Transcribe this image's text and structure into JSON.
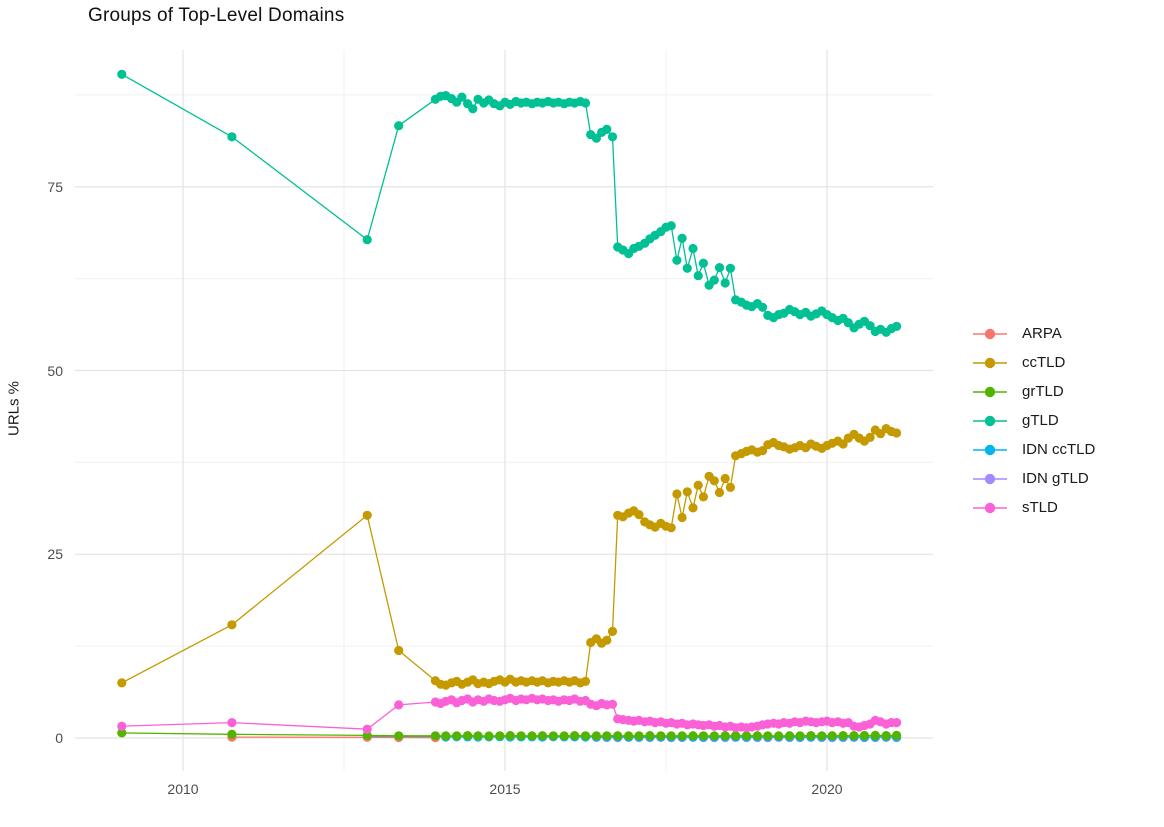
{
  "title": "Groups of Top-Level Domains",
  "y_axis": {
    "label": "URLs %",
    "tick_labels": [
      "0",
      "25",
      "50",
      "75"
    ],
    "major_ticks": [
      0,
      25,
      50,
      75
    ],
    "minor_ticks": [
      12.5,
      37.5,
      62.5,
      87.5
    ],
    "range": [
      -4.5,
      93.6
    ]
  },
  "x_axis": {
    "label": "",
    "tick_labels": [
      "2010",
      "2015",
      "2020"
    ],
    "major_ticks": [
      2010,
      2015,
      2020
    ],
    "minor_ticks": [
      2012.5,
      2017.5
    ],
    "range": [
      2008.3,
      2021.65
    ]
  },
  "legend": {
    "position": "right",
    "items": [
      {
        "label": "ARPA",
        "color": "#F8766D"
      },
      {
        "label": "ccTLD",
        "color": "#C49A00"
      },
      {
        "label": "grTLD",
        "color": "#53B400"
      },
      {
        "label": "gTLD",
        "color": "#00C094"
      },
      {
        "label": "IDN ccTLD",
        "color": "#00B6EB"
      },
      {
        "label": "IDN gTLD",
        "color": "#A58AFF"
      },
      {
        "label": "sTLD",
        "color": "#FB61D7"
      }
    ]
  },
  "style": {
    "background": "#FFFFFF",
    "grid_major_color": "#E4E4E4",
    "grid_minor_color": "#F0F0F0",
    "tick_label_color": "#4D4D4D",
    "title_color": "#111111"
  },
  "chart_data": {
    "type": "line",
    "title": "Groups of Top-Level Domains",
    "xlabel": "",
    "ylabel": "URLs %",
    "xlim": [
      2008.3,
      2021.65
    ],
    "ylim": [
      -4.5,
      93.6
    ],
    "grid": true,
    "legend_position": "right",
    "marker": "point",
    "x_monthly": [
      2013.92,
      2014.0,
      2014.08,
      2014.17,
      2014.25,
      2014.33,
      2014.42,
      2014.5,
      2014.58,
      2014.67,
      2014.75,
      2014.83,
      2014.92,
      2015.0,
      2015.08,
      2015.17,
      2015.25,
      2015.33,
      2015.42,
      2015.5,
      2015.58,
      2015.67,
      2015.75,
      2015.83,
      2015.92,
      2016.0,
      2016.08,
      2016.17,
      2016.25,
      2016.33,
      2016.42,
      2016.5,
      2016.58,
      2016.67,
      2016.75,
      2016.83,
      2016.92,
      2017.0,
      2017.08,
      2017.17,
      2017.25,
      2017.33,
      2017.42,
      2017.5,
      2017.58,
      2017.67,
      2017.75,
      2017.83,
      2017.92,
      2018.0,
      2018.08,
      2018.17,
      2018.25,
      2018.33,
      2018.42,
      2018.5,
      2018.58,
      2018.67,
      2018.75,
      2018.83,
      2018.92,
      2019.0,
      2019.08,
      2019.17,
      2019.25,
      2019.33,
      2019.42,
      2019.5,
      2019.58,
      2019.67,
      2019.75,
      2019.83,
      2019.92,
      2020.0,
      2020.08,
      2020.17,
      2020.25,
      2020.33,
      2020.42,
      2020.5,
      2020.58,
      2020.67,
      2020.75,
      2020.83,
      2020.92,
      2021.0,
      2021.08
    ],
    "series": [
      {
        "name": "IDN gTLD",
        "color": "#A58AFF",
        "points": [
          [
            2016.42,
            0.08
          ],
          [
            2016.58,
            0.07
          ],
          [
            2016.75,
            0.06
          ],
          [
            2016.92,
            0.08
          ],
          [
            2017.08,
            0.07
          ],
          [
            2017.25,
            0.07
          ],
          [
            2017.42,
            0.08
          ],
          [
            2017.58,
            0.06
          ],
          [
            2017.75,
            0.07
          ],
          [
            2017.92,
            0.08
          ],
          [
            2018.08,
            0.07
          ],
          [
            2018.25,
            0.06
          ],
          [
            2018.42,
            0.07
          ],
          [
            2018.58,
            0.08
          ],
          [
            2018.75,
            0.07
          ],
          [
            2018.92,
            0.07
          ],
          [
            2019.08,
            0.06
          ],
          [
            2019.25,
            0.08
          ],
          [
            2019.42,
            0.07
          ],
          [
            2019.58,
            0.07
          ],
          [
            2019.75,
            0.08
          ],
          [
            2019.92,
            0.07
          ],
          [
            2020.08,
            0.06
          ],
          [
            2020.25,
            0.07
          ],
          [
            2020.42,
            0.08
          ],
          [
            2020.58,
            0.07
          ],
          [
            2020.75,
            0.07
          ],
          [
            2020.92,
            0.08
          ],
          [
            2021.08,
            0.07
          ]
        ]
      },
      {
        "name": "IDN ccTLD",
        "color": "#00B6EB",
        "points": [
          [
            2012.86,
            0.2
          ],
          [
            2013.35,
            0.15
          ],
          [
            2013.92,
            0.15
          ],
          [
            2014.08,
            0.14
          ],
          [
            2014.25,
            0.16
          ],
          [
            2014.42,
            0.15
          ],
          [
            2014.58,
            0.13
          ],
          [
            2014.75,
            0.15
          ],
          [
            2014.92,
            0.16
          ],
          [
            2015.08,
            0.14
          ],
          [
            2015.25,
            0.15
          ],
          [
            2015.42,
            0.15
          ],
          [
            2015.58,
            0.14
          ],
          [
            2015.75,
            0.16
          ],
          [
            2015.92,
            0.15
          ],
          [
            2016.08,
            0.15
          ],
          [
            2016.25,
            0.14
          ],
          [
            2016.42,
            0.15
          ],
          [
            2016.58,
            0.16
          ],
          [
            2016.75,
            0.15
          ],
          [
            2016.92,
            0.14
          ],
          [
            2017.08,
            0.15
          ],
          [
            2017.25,
            0.15
          ],
          [
            2017.42,
            0.16
          ],
          [
            2017.58,
            0.14
          ],
          [
            2017.75,
            0.15
          ],
          [
            2017.92,
            0.15
          ],
          [
            2018.08,
            0.14
          ],
          [
            2018.25,
            0.15
          ],
          [
            2018.42,
            0.16
          ],
          [
            2018.58,
            0.15
          ],
          [
            2018.75,
            0.14
          ],
          [
            2018.92,
            0.15
          ],
          [
            2019.08,
            0.15
          ],
          [
            2019.25,
            0.16
          ],
          [
            2019.42,
            0.15
          ],
          [
            2019.58,
            0.14
          ],
          [
            2019.75,
            0.15
          ],
          [
            2019.92,
            0.15
          ],
          [
            2020.08,
            0.16
          ],
          [
            2020.25,
            0.15
          ],
          [
            2020.42,
            0.15
          ],
          [
            2020.58,
            0.14
          ],
          [
            2020.75,
            0.15
          ],
          [
            2020.92,
            0.16
          ],
          [
            2021.08,
            0.15
          ]
        ]
      },
      {
        "name": "ARPA",
        "color": "#F8766D",
        "points": [
          [
            2010.76,
            0.12
          ],
          [
            2012.86,
            0.1
          ],
          [
            2013.35,
            0.07
          ],
          [
            2013.92,
            0.06
          ]
        ]
      },
      {
        "name": "grTLD",
        "color": "#53B400",
        "points": [
          [
            2009.05,
            0.7
          ],
          [
            2010.76,
            0.5
          ],
          [
            2012.86,
            0.35
          ],
          [
            2013.35,
            0.3
          ],
          [
            2013.92,
            0.3
          ],
          [
            2014.08,
            0.28
          ],
          [
            2014.25,
            0.3
          ],
          [
            2014.42,
            0.32
          ],
          [
            2014.58,
            0.3
          ],
          [
            2014.75,
            0.27
          ],
          [
            2014.92,
            0.3
          ],
          [
            2015.08,
            0.33
          ],
          [
            2015.25,
            0.3
          ],
          [
            2015.42,
            0.28
          ],
          [
            2015.58,
            0.31
          ],
          [
            2015.75,
            0.3
          ],
          [
            2015.92,
            0.29
          ],
          [
            2016.08,
            0.32
          ],
          [
            2016.25,
            0.3
          ],
          [
            2016.42,
            0.28
          ],
          [
            2016.58,
            0.3
          ],
          [
            2016.75,
            0.31
          ],
          [
            2016.92,
            0.29
          ],
          [
            2017.08,
            0.3
          ],
          [
            2017.25,
            0.32
          ],
          [
            2017.42,
            0.3
          ],
          [
            2017.58,
            0.28
          ],
          [
            2017.75,
            0.3
          ],
          [
            2017.92,
            0.31
          ],
          [
            2018.08,
            0.3
          ],
          [
            2018.25,
            0.29
          ],
          [
            2018.42,
            0.3
          ],
          [
            2018.58,
            0.32
          ],
          [
            2018.75,
            0.3
          ],
          [
            2018.92,
            0.31
          ],
          [
            2019.08,
            0.3
          ],
          [
            2019.25,
            0.29
          ],
          [
            2019.42,
            0.31
          ],
          [
            2019.58,
            0.3
          ],
          [
            2019.75,
            0.32
          ],
          [
            2019.92,
            0.3
          ],
          [
            2020.08,
            0.31
          ],
          [
            2020.25,
            0.33
          ],
          [
            2020.42,
            0.32
          ],
          [
            2020.58,
            0.34
          ],
          [
            2020.75,
            0.35
          ],
          [
            2020.92,
            0.33
          ],
          [
            2021.08,
            0.35
          ]
        ]
      },
      {
        "name": "sTLD",
        "color": "#FB61D7",
        "prefix": [
          [
            2009.05,
            1.6
          ],
          [
            2010.76,
            2.1
          ],
          [
            2012.86,
            1.2
          ],
          [
            2013.35,
            4.5
          ]
        ],
        "y_monthly": [
          4.9,
          4.7,
          5.0,
          5.2,
          4.8,
          5.1,
          5.3,
          4.9,
          5.2,
          5.0,
          5.3,
          5.1,
          5.0,
          5.2,
          5.4,
          5.1,
          5.3,
          5.2,
          5.4,
          5.2,
          5.3,
          5.1,
          5.2,
          5.0,
          5.2,
          5.1,
          5.3,
          5.0,
          5.1,
          4.6,
          4.4,
          4.7,
          4.5,
          4.6,
          2.6,
          2.5,
          2.4,
          2.3,
          2.4,
          2.2,
          2.3,
          2.1,
          2.2,
          2.0,
          2.1,
          1.9,
          2.0,
          1.8,
          1.9,
          1.8,
          1.7,
          1.8,
          1.6,
          1.7,
          1.5,
          1.6,
          1.4,
          1.5,
          1.4,
          1.5,
          1.6,
          1.8,
          1.9,
          2.0,
          1.9,
          2.1,
          2.0,
          2.2,
          2.1,
          2.3,
          2.2,
          2.1,
          2.2,
          2.3,
          2.1,
          2.2,
          2.0,
          2.1,
          1.6,
          1.5,
          1.7,
          1.9,
          2.4,
          2.2,
          1.9,
          2.1,
          2.1
        ]
      },
      {
        "name": "ccTLD",
        "color": "#C49A00",
        "prefix": [
          [
            2009.05,
            7.5
          ],
          [
            2010.76,
            15.4
          ],
          [
            2012.86,
            30.3
          ],
          [
            2013.35,
            11.9
          ]
        ],
        "y_monthly": [
          7.8,
          7.3,
          7.2,
          7.5,
          7.7,
          7.3,
          7.6,
          7.9,
          7.4,
          7.6,
          7.4,
          7.7,
          7.9,
          7.6,
          8.0,
          7.6,
          7.8,
          7.6,
          7.8,
          7.6,
          7.8,
          7.5,
          7.7,
          7.6,
          7.8,
          7.6,
          7.8,
          7.5,
          7.7,
          13.0,
          13.5,
          12.9,
          13.3,
          14.5,
          30.3,
          30.1,
          30.6,
          30.9,
          30.4,
          29.4,
          29.0,
          28.7,
          29.2,
          28.8,
          28.6,
          33.2,
          30.0,
          33.5,
          31.3,
          34.4,
          32.8,
          35.6,
          35.0,
          33.4,
          35.3,
          34.1,
          38.4,
          38.7,
          39.0,
          39.2,
          38.9,
          39.1,
          39.9,
          40.2,
          39.8,
          39.6,
          39.3,
          39.5,
          39.8,
          39.5,
          40.0,
          39.7,
          39.4,
          39.8,
          40.1,
          40.4,
          40.0,
          40.8,
          41.3,
          40.8,
          40.4,
          40.9,
          41.9,
          41.4,
          42.1,
          41.7,
          41.5
        ]
      },
      {
        "name": "gTLD",
        "color": "#00C094",
        "prefix": [
          [
            2009.05,
            90.3
          ],
          [
            2010.76,
            81.8
          ],
          [
            2012.86,
            67.8
          ],
          [
            2013.35,
            83.3
          ]
        ],
        "y_monthly": [
          86.9,
          87.3,
          87.4,
          87.0,
          86.5,
          87.2,
          86.3,
          85.6,
          86.9,
          86.4,
          86.8,
          86.3,
          86.0,
          86.5,
          86.2,
          86.6,
          86.4,
          86.5,
          86.3,
          86.5,
          86.4,
          86.6,
          86.4,
          86.5,
          86.3,
          86.5,
          86.4,
          86.6,
          86.4,
          82.1,
          81.6,
          82.4,
          82.8,
          81.8,
          66.8,
          66.4,
          65.9,
          66.6,
          66.9,
          67.3,
          67.9,
          68.4,
          68.9,
          69.5,
          69.7,
          65.0,
          68.0,
          63.9,
          66.6,
          62.9,
          64.6,
          61.6,
          62.3,
          64.0,
          61.9,
          63.9,
          59.6,
          59.3,
          58.9,
          58.7,
          59.1,
          58.6,
          57.5,
          57.2,
          57.6,
          57.8,
          58.3,
          58.0,
          57.6,
          57.9,
          57.4,
          57.7,
          58.1,
          57.6,
          57.2,
          56.8,
          57.1,
          56.5,
          55.8,
          56.3,
          56.7,
          56.1,
          55.3,
          55.6,
          55.2,
          55.7,
          56.0
        ]
      }
    ]
  }
}
